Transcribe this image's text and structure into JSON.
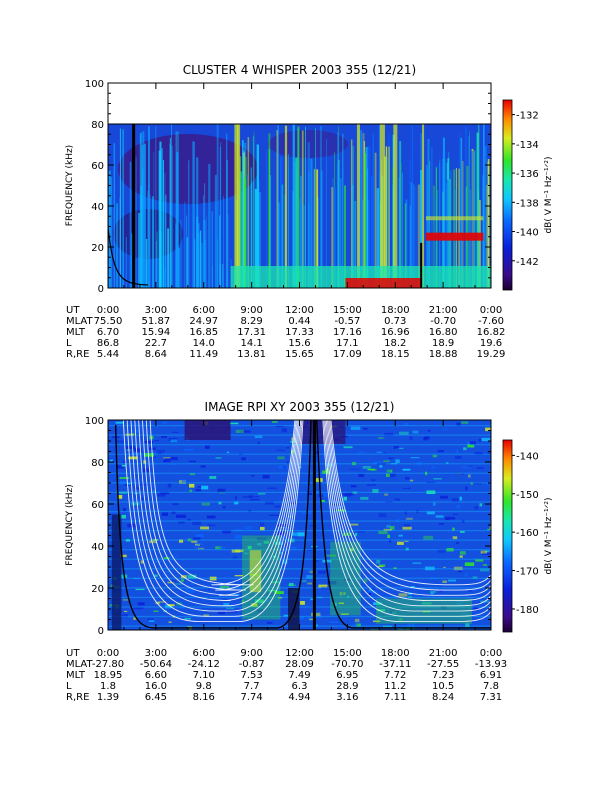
{
  "chart_data": [
    {
      "type": "heatmap",
      "title": "CLUSTER 4 WHISPER 2003 355 (12/21)",
      "ylabel": "FREQUENCY (kHz)",
      "ylim": [
        0,
        100
      ],
      "y_ticks": [
        "0",
        "20",
        "40",
        "60",
        "80",
        "100"
      ],
      "colorbar": {
        "label": "dB( V M⁻¹ Hz⁻¹ᐟ²)",
        "ticks": [
          "-142",
          "-140",
          "-138",
          "-136",
          "-134",
          "-132"
        ],
        "range": [
          -144,
          -131
        ]
      },
      "data_ceiling_khz": 80,
      "x_ticks": [
        "0:00",
        "3:00",
        "6:00",
        "9:00",
        "12:00",
        "15:00",
        "18:00",
        "21:00",
        "0:00"
      ],
      "ephemeris": [
        {
          "label": "UT",
          "values": [
            "0:00",
            "3:00",
            "6:00",
            "9:00",
            "12:00",
            "15:00",
            "18:00",
            "21:00",
            "0:00"
          ]
        },
        {
          "label": "MLAT",
          "values": [
            "75.50",
            "51.87",
            "24.97",
            "8.29",
            "0.44",
            "-0.57",
            "0.73",
            "-0.70",
            "-7.60"
          ]
        },
        {
          "label": "MLT",
          "values": [
            "6.70",
            "15.94",
            "16.85",
            "17.31",
            "17.33",
            "17.16",
            "16.96",
            "16.80",
            "16.82"
          ]
        },
        {
          "label": "L",
          "values": [
            "86.8",
            "22.7",
            "14.0",
            "14.1",
            "15.6",
            "17.1",
            "18.2",
            "18.9",
            "19.6"
          ]
        },
        {
          "label": "R,RE",
          "values": [
            "5.44",
            "8.64",
            "11.49",
            "13.81",
            "15.65",
            "17.09",
            "18.15",
            "18.88",
            "19.29"
          ]
        }
      ]
    },
    {
      "type": "heatmap",
      "title": "IMAGE RPI XY 2003 355 (12/21)",
      "ylabel": "FREQUENCY (kHz)",
      "ylim": [
        0,
        100
      ],
      "y_ticks": [
        "0",
        "20",
        "40",
        "60",
        "80",
        "100"
      ],
      "colorbar": {
        "label": "dB( V M⁻¹ Hz⁻¹ᐟ²)",
        "ticks": [
          "-180",
          "-170",
          "-160",
          "-150",
          "-140"
        ],
        "range": [
          -186,
          -136
        ]
      },
      "x_ticks": [
        "0:00",
        "3:00",
        "6:00",
        "9:00",
        "12:00",
        "15:00",
        "18:00",
        "21:00",
        "0:00"
      ],
      "ephemeris": [
        {
          "label": "UT",
          "values": [
            "0:00",
            "3:00",
            "6:00",
            "9:00",
            "12:00",
            "15:00",
            "18:00",
            "21:00",
            "0:00"
          ]
        },
        {
          "label": "MLAT",
          "values": [
            "-27.80",
            "-50.64",
            "-24.12",
            "-0.87",
            "28.09",
            "-70.70",
            "-37.11",
            "-27.55",
            "-13.93"
          ]
        },
        {
          "label": "MLT",
          "values": [
            "18.95",
            "6.60",
            "7.10",
            "7.53",
            "7.49",
            "6.95",
            "7.72",
            "7.23",
            "6.91"
          ]
        },
        {
          "label": "L",
          "values": [
            "1.8",
            "16.0",
            "9.8",
            "7.7",
            "6.3",
            "28.9",
            "11.2",
            "10.5",
            "7.8"
          ]
        },
        {
          "label": "R,RE",
          "values": [
            "1.39",
            "6.45",
            "8.16",
            "7.74",
            "4.94",
            "3.16",
            "7.11",
            "8.24",
            "7.31"
          ]
        }
      ]
    }
  ]
}
